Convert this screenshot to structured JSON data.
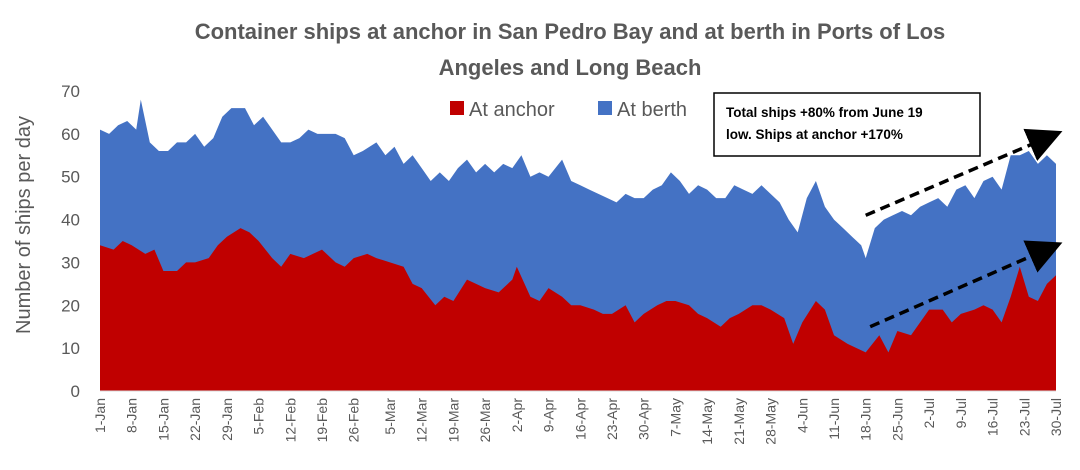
{
  "chart_data": {
    "type": "area",
    "title_line1": "Container ships at anchor in San Pedro Bay and at berth in Ports of Los",
    "title_line2": "Angeles and Long Beach",
    "ylabel": "Number of ships per day",
    "ylim": [
      0,
      70
    ],
    "y_ticks": [
      "0",
      "10",
      "20",
      "30",
      "40",
      "50",
      "60",
      "70"
    ],
    "x_range": [
      "2020-01-01",
      "2020-07-30"
    ],
    "x_ticks": [
      {
        "date": "2020-01-01",
        "label": "1-Jan"
      },
      {
        "date": "2020-01-08",
        "label": "8-Jan"
      },
      {
        "date": "2020-01-15",
        "label": "15-Jan"
      },
      {
        "date": "2020-01-22",
        "label": "22-Jan"
      },
      {
        "date": "2020-01-29",
        "label": "29-Jan"
      },
      {
        "date": "2020-02-05",
        "label": "5-Feb"
      },
      {
        "date": "2020-02-12",
        "label": "12-Feb"
      },
      {
        "date": "2020-02-19",
        "label": "19-Feb"
      },
      {
        "date": "2020-02-26",
        "label": "26-Feb"
      },
      {
        "date": "2020-03-05",
        "label": "5-Mar"
      },
      {
        "date": "2020-03-12",
        "label": "12-Mar"
      },
      {
        "date": "2020-03-19",
        "label": "19-Mar"
      },
      {
        "date": "2020-03-26",
        "label": "26-Mar"
      },
      {
        "date": "2020-04-02",
        "label": "2-Apr"
      },
      {
        "date": "2020-04-09",
        "label": "9-Apr"
      },
      {
        "date": "2020-04-16",
        "label": "16-Apr"
      },
      {
        "date": "2020-04-23",
        "label": "23-Apr"
      },
      {
        "date": "2020-04-30",
        "label": "30-Apr"
      },
      {
        "date": "2020-05-07",
        "label": "7-May"
      },
      {
        "date": "2020-05-14",
        "label": "14-May"
      },
      {
        "date": "2020-05-21",
        "label": "21-May"
      },
      {
        "date": "2020-05-28",
        "label": "28-May"
      },
      {
        "date": "2020-06-04",
        "label": "4-Jun"
      },
      {
        "date": "2020-06-11",
        "label": "11-Jun"
      },
      {
        "date": "2020-06-18",
        "label": "18-Jun"
      },
      {
        "date": "2020-06-25",
        "label": "25-Jun"
      },
      {
        "date": "2020-07-02",
        "label": "2-Jul"
      },
      {
        "date": "2020-07-09",
        "label": "9-Jul"
      },
      {
        "date": "2020-07-16",
        "label": "16-Jul"
      },
      {
        "date": "2020-07-23",
        "label": "23-Jul"
      },
      {
        "date": "2020-07-30",
        "label": "30-Jul"
      }
    ],
    "legend": {
      "placement": "top-center"
    },
    "grid": false,
    "series": [
      {
        "name": "At anchor",
        "color": "#C00000",
        "points": [
          [
            "2020-01-01",
            34
          ],
          [
            "2020-01-04",
            33
          ],
          [
            "2020-01-06",
            35
          ],
          [
            "2020-01-08",
            34
          ],
          [
            "2020-01-11",
            32
          ],
          [
            "2020-01-13",
            33
          ],
          [
            "2020-01-15",
            28
          ],
          [
            "2020-01-18",
            28
          ],
          [
            "2020-01-20",
            30
          ],
          [
            "2020-01-22",
            30
          ],
          [
            "2020-01-25",
            31
          ],
          [
            "2020-01-27",
            34
          ],
          [
            "2020-01-29",
            36
          ],
          [
            "2020-02-01",
            38
          ],
          [
            "2020-02-03",
            37
          ],
          [
            "2020-02-05",
            35
          ],
          [
            "2020-02-08",
            31
          ],
          [
            "2020-02-10",
            29
          ],
          [
            "2020-02-12",
            32
          ],
          [
            "2020-02-15",
            31
          ],
          [
            "2020-02-17",
            32
          ],
          [
            "2020-02-19",
            33
          ],
          [
            "2020-02-22",
            30
          ],
          [
            "2020-02-24",
            29
          ],
          [
            "2020-02-26",
            31
          ],
          [
            "2020-02-29",
            32
          ],
          [
            "2020-03-02",
            31
          ],
          [
            "2020-03-05",
            30
          ],
          [
            "2020-03-08",
            29
          ],
          [
            "2020-03-10",
            25
          ],
          [
            "2020-03-12",
            24
          ],
          [
            "2020-03-15",
            20
          ],
          [
            "2020-03-17",
            22
          ],
          [
            "2020-03-19",
            21
          ],
          [
            "2020-03-22",
            26
          ],
          [
            "2020-03-24",
            25
          ],
          [
            "2020-03-26",
            24
          ],
          [
            "2020-03-29",
            23
          ],
          [
            "2020-04-01",
            26
          ],
          [
            "2020-04-02",
            29
          ],
          [
            "2020-04-05",
            22
          ],
          [
            "2020-04-07",
            21
          ],
          [
            "2020-04-09",
            24
          ],
          [
            "2020-04-12",
            22
          ],
          [
            "2020-04-14",
            20
          ],
          [
            "2020-04-16",
            20
          ],
          [
            "2020-04-19",
            19
          ],
          [
            "2020-04-21",
            18
          ],
          [
            "2020-04-23",
            18
          ],
          [
            "2020-04-26",
            20
          ],
          [
            "2020-04-28",
            16
          ],
          [
            "2020-04-30",
            18
          ],
          [
            "2020-05-03",
            20
          ],
          [
            "2020-05-05",
            21
          ],
          [
            "2020-05-07",
            21
          ],
          [
            "2020-05-10",
            20
          ],
          [
            "2020-05-12",
            18
          ],
          [
            "2020-05-14",
            17
          ],
          [
            "2020-05-17",
            15
          ],
          [
            "2020-05-19",
            17
          ],
          [
            "2020-05-21",
            18
          ],
          [
            "2020-05-24",
            20
          ],
          [
            "2020-05-26",
            20
          ],
          [
            "2020-05-28",
            19
          ],
          [
            "2020-05-31",
            17
          ],
          [
            "2020-06-02",
            11
          ],
          [
            "2020-06-04",
            16
          ],
          [
            "2020-06-07",
            21
          ],
          [
            "2020-06-09",
            19
          ],
          [
            "2020-06-11",
            13
          ],
          [
            "2020-06-14",
            11
          ],
          [
            "2020-06-16",
            10
          ],
          [
            "2020-06-18",
            9
          ],
          [
            "2020-06-21",
            13
          ],
          [
            "2020-06-23",
            9
          ],
          [
            "2020-06-25",
            14
          ],
          [
            "2020-06-28",
            13
          ],
          [
            "2020-06-30",
            16
          ],
          [
            "2020-07-02",
            19
          ],
          [
            "2020-07-05",
            19
          ],
          [
            "2020-07-07",
            16
          ],
          [
            "2020-07-09",
            18
          ],
          [
            "2020-07-12",
            19
          ],
          [
            "2020-07-14",
            20
          ],
          [
            "2020-07-16",
            19
          ],
          [
            "2020-07-18",
            16
          ],
          [
            "2020-07-20",
            22
          ],
          [
            "2020-07-22",
            29
          ],
          [
            "2020-07-24",
            22
          ],
          [
            "2020-07-26",
            21
          ],
          [
            "2020-07-28",
            25
          ],
          [
            "2020-07-30",
            27
          ]
        ]
      },
      {
        "name": "At berth",
        "color": "#4472C4",
        "stacked_total_points": [
          [
            "2020-01-01",
            61
          ],
          [
            "2020-01-03",
            60
          ],
          [
            "2020-01-05",
            62
          ],
          [
            "2020-01-07",
            63
          ],
          [
            "2020-01-09",
            61
          ],
          [
            "2020-01-10",
            68
          ],
          [
            "2020-01-12",
            58
          ],
          [
            "2020-01-14",
            56
          ],
          [
            "2020-01-16",
            56
          ],
          [
            "2020-01-18",
            58
          ],
          [
            "2020-01-20",
            58
          ],
          [
            "2020-01-22",
            60
          ],
          [
            "2020-01-24",
            57
          ],
          [
            "2020-01-26",
            59
          ],
          [
            "2020-01-28",
            64
          ],
          [
            "2020-01-30",
            66
          ],
          [
            "2020-02-02",
            66
          ],
          [
            "2020-02-04",
            62
          ],
          [
            "2020-02-06",
            64
          ],
          [
            "2020-02-08",
            61
          ],
          [
            "2020-02-10",
            58
          ],
          [
            "2020-02-12",
            58
          ],
          [
            "2020-02-14",
            59
          ],
          [
            "2020-02-16",
            61
          ],
          [
            "2020-02-18",
            60
          ],
          [
            "2020-02-20",
            60
          ],
          [
            "2020-02-22",
            60
          ],
          [
            "2020-02-24",
            59
          ],
          [
            "2020-02-26",
            55
          ],
          [
            "2020-02-28",
            56
          ],
          [
            "2020-03-02",
            58
          ],
          [
            "2020-03-04",
            55
          ],
          [
            "2020-03-06",
            57
          ],
          [
            "2020-03-08",
            53
          ],
          [
            "2020-03-10",
            55
          ],
          [
            "2020-03-12",
            52
          ],
          [
            "2020-03-14",
            49
          ],
          [
            "2020-03-16",
            51
          ],
          [
            "2020-03-18",
            49
          ],
          [
            "2020-03-20",
            52
          ],
          [
            "2020-03-22",
            54
          ],
          [
            "2020-03-24",
            51
          ],
          [
            "2020-03-26",
            53
          ],
          [
            "2020-03-28",
            51
          ],
          [
            "2020-03-30",
            53
          ],
          [
            "2020-04-01",
            52
          ],
          [
            "2020-04-03",
            55
          ],
          [
            "2020-04-05",
            50
          ],
          [
            "2020-04-07",
            51
          ],
          [
            "2020-04-09",
            50
          ],
          [
            "2020-04-12",
            54
          ],
          [
            "2020-04-14",
            49
          ],
          [
            "2020-04-16",
            48
          ],
          [
            "2020-04-18",
            47
          ],
          [
            "2020-04-20",
            46
          ],
          [
            "2020-04-22",
            45
          ],
          [
            "2020-04-24",
            44
          ],
          [
            "2020-04-26",
            46
          ],
          [
            "2020-04-28",
            45
          ],
          [
            "2020-04-30",
            45
          ],
          [
            "2020-05-02",
            47
          ],
          [
            "2020-05-04",
            48
          ],
          [
            "2020-05-06",
            51
          ],
          [
            "2020-05-08",
            49
          ],
          [
            "2020-05-10",
            46
          ],
          [
            "2020-05-12",
            48
          ],
          [
            "2020-05-14",
            47
          ],
          [
            "2020-05-16",
            45
          ],
          [
            "2020-05-18",
            45
          ],
          [
            "2020-05-20",
            48
          ],
          [
            "2020-05-22",
            47
          ],
          [
            "2020-05-24",
            46
          ],
          [
            "2020-05-26",
            48
          ],
          [
            "2020-05-28",
            46
          ],
          [
            "2020-05-30",
            44
          ],
          [
            "2020-06-01",
            40
          ],
          [
            "2020-06-03",
            37
          ],
          [
            "2020-06-05",
            45
          ],
          [
            "2020-06-07",
            49
          ],
          [
            "2020-06-09",
            43
          ],
          [
            "2020-06-11",
            40
          ],
          [
            "2020-06-13",
            38
          ],
          [
            "2020-06-15",
            36
          ],
          [
            "2020-06-17",
            34
          ],
          [
            "2020-06-18",
            31
          ],
          [
            "2020-06-20",
            38
          ],
          [
            "2020-06-22",
            40
          ],
          [
            "2020-06-24",
            41
          ],
          [
            "2020-06-26",
            42
          ],
          [
            "2020-06-28",
            41
          ],
          [
            "2020-06-30",
            43
          ],
          [
            "2020-07-02",
            44
          ],
          [
            "2020-07-04",
            45
          ],
          [
            "2020-07-06",
            43
          ],
          [
            "2020-07-08",
            47
          ],
          [
            "2020-07-10",
            48
          ],
          [
            "2020-07-12",
            45
          ],
          [
            "2020-07-14",
            49
          ],
          [
            "2020-07-16",
            50
          ],
          [
            "2020-07-18",
            47
          ],
          [
            "2020-07-20",
            55
          ],
          [
            "2020-07-22",
            55
          ],
          [
            "2020-07-24",
            56
          ],
          [
            "2020-07-26",
            53
          ],
          [
            "2020-07-28",
            55
          ],
          [
            "2020-07-30",
            53
          ]
        ]
      }
    ],
    "annotation": {
      "text_line1": "Total ships +80% from June 19",
      "text_line2": "low. Ships at anchor +170%"
    },
    "trend_arrows": [
      {
        "from": [
          "2020-06-18",
          41
        ],
        "to": [
          "2020-07-30",
          60
        ],
        "style": "dashed"
      },
      {
        "from": [
          "2020-06-19",
          15
        ],
        "to": [
          "2020-07-30",
          34
        ],
        "style": "dashed"
      }
    ]
  }
}
